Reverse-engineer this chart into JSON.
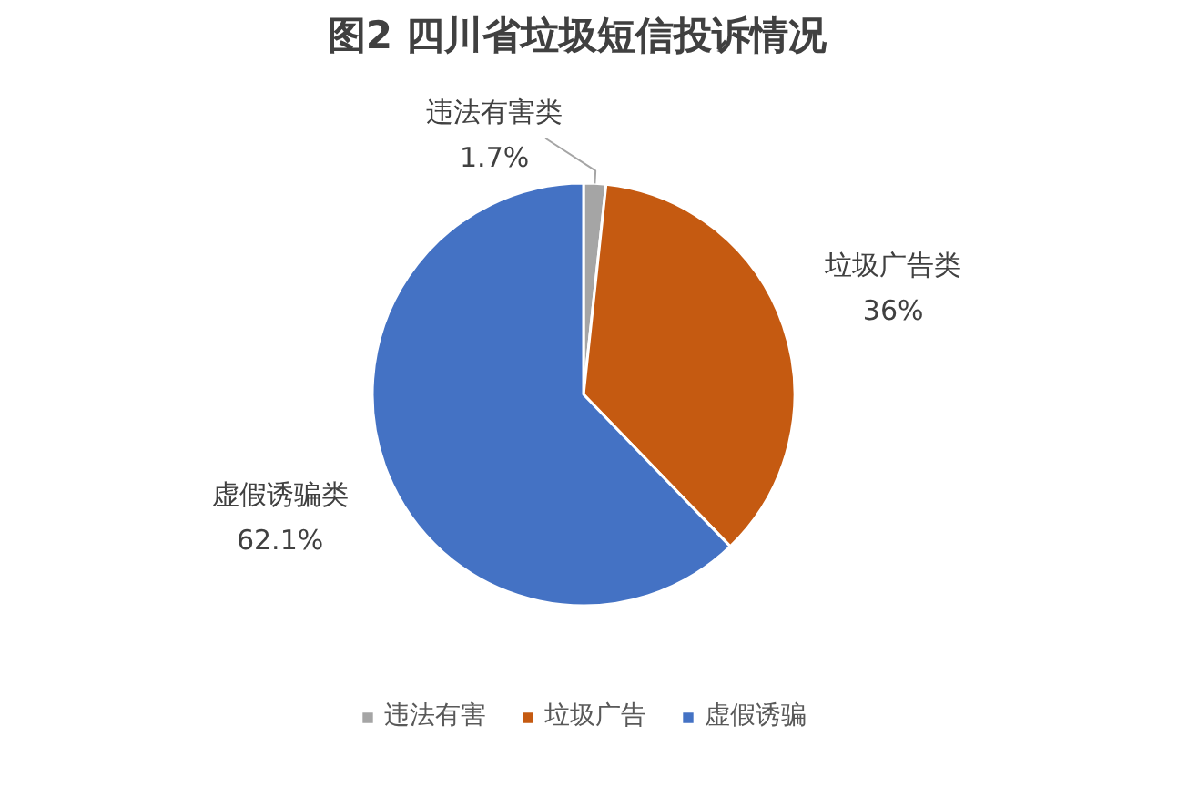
{
  "chart_data": {
    "type": "pie",
    "title": "图2  四川省垃圾短信投诉情况",
    "categories": [
      "违法有害",
      "垃圾广告",
      "虚假诱骗"
    ],
    "values": [
      1.7,
      36,
      62.1
    ],
    "colors": [
      "#a5a5a5",
      "#c55a11",
      "#4472c4"
    ],
    "annotations": [
      "违法有害类",
      "垃圾广告类",
      "虚假诱骗类"
    ],
    "value_labels": [
      "1.7%",
      "36%",
      "62.1%"
    ],
    "legend": "bottom"
  }
}
